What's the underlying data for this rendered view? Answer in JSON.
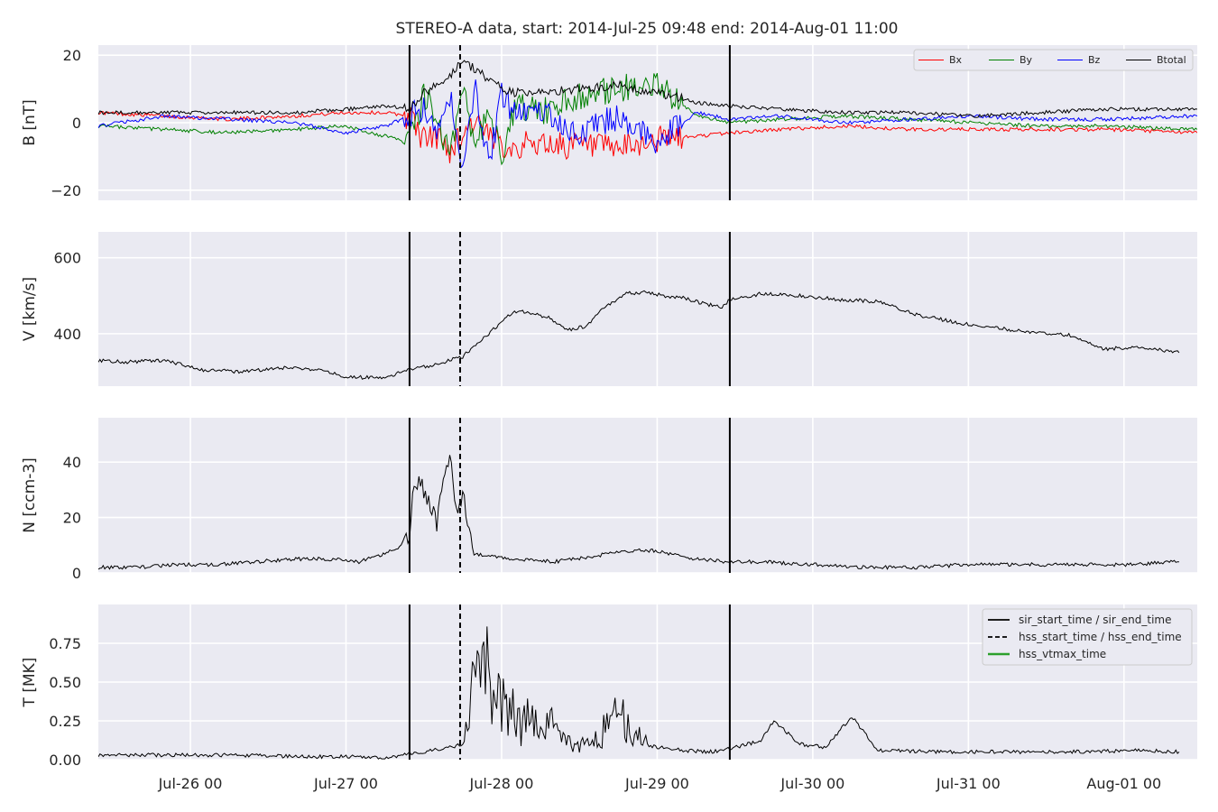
{
  "figure": {
    "title": "STEREO-A data, start: 2014-Jul-25 09:48  end: 2014-Aug-01 11:00"
  },
  "time_axis": {
    "start_hours": 9.8,
    "end_hours": 179.3,
    "tick_labels": [
      "Jul-26 00",
      "Jul-27 00",
      "Jul-28 00",
      "Jul-29 00",
      "Jul-30 00",
      "Jul-31 00",
      "Aug-01 00"
    ],
    "tick_hours": [
      24,
      48,
      72,
      96,
      120,
      144,
      168
    ]
  },
  "event_lines": {
    "sir_start_time_hours": 57.8,
    "hss_start_time_hours": 65.6,
    "sir_end_time_hours": 107.2
  },
  "colors": {
    "background": "#eaeaf2",
    "grid": "#ffffff",
    "bx": "#ff0000",
    "by": "#008000",
    "bz": "#0000ff",
    "btotal": "#000000",
    "hss_vtmax": "#2ca02c"
  },
  "chart_data": [
    {
      "type": "line",
      "ylabel": "B [nT]",
      "ylim": [
        -23,
        23
      ],
      "yticks": [
        -20,
        0,
        20
      ],
      "ytick_labels": [
        "−20",
        "0",
        "20"
      ],
      "legend_position": "top-right",
      "series": [
        {
          "name": "Bx",
          "color": "#ff0000",
          "x": [
            9.8,
            20,
            30,
            40,
            48,
            54,
            57.8,
            60,
            62,
            64,
            66,
            68,
            70,
            72,
            74,
            78,
            84,
            90,
            96,
            102,
            107.2,
            115,
            125,
            135,
            145,
            155,
            165,
            179.3
          ],
          "y": [
            3,
            2,
            1,
            2,
            3,
            3,
            2,
            -5,
            -4,
            -8,
            -3,
            1,
            -5,
            -6,
            -7,
            -6,
            -7,
            -8,
            -5,
            -4,
            -3,
            -2,
            -1,
            -2,
            -2,
            -2,
            -2,
            -3
          ]
        },
        {
          "name": "By",
          "color": "#008000",
          "x": [
            9.8,
            20,
            30,
            40,
            48,
            54,
            57.8,
            60,
            62,
            64,
            66,
            68,
            70,
            72,
            74,
            78,
            84,
            90,
            96,
            102,
            107.2,
            115,
            125,
            135,
            145,
            155,
            165,
            179.3
          ],
          "y": [
            -1,
            -2,
            -3,
            -2,
            -1,
            -4,
            -6,
            8,
            2,
            -10,
            10,
            -8,
            6,
            -10,
            5,
            3,
            8,
            10,
            12,
            2,
            0,
            1,
            2,
            1,
            0,
            -1,
            -1,
            -2
          ]
        },
        {
          "name": "Bz",
          "color": "#0000ff",
          "x": [
            9.8,
            20,
            30,
            40,
            48,
            54,
            57.8,
            60,
            62,
            64,
            66,
            68,
            70,
            72,
            74,
            78,
            84,
            90,
            96,
            102,
            107.2,
            115,
            125,
            135,
            145,
            155,
            165,
            179.3
          ],
          "y": [
            -1,
            2,
            1,
            0,
            -3,
            -1,
            2,
            4,
            -5,
            8,
            -12,
            10,
            -12,
            8,
            3,
            4,
            -3,
            2,
            -6,
            3,
            1,
            2,
            0,
            1,
            2,
            1,
            1,
            2
          ]
        },
        {
          "name": "Btotal",
          "color": "#000000",
          "x": [
            9.8,
            20,
            30,
            40,
            48,
            54,
            57.8,
            60,
            62,
            64,
            66,
            68,
            70,
            72,
            74,
            78,
            84,
            90,
            96,
            102,
            107.2,
            115,
            125,
            135,
            145,
            155,
            165,
            179.3
          ],
          "y": [
            3,
            3,
            3,
            3,
            4,
            5,
            4,
            9,
            11,
            14,
            18,
            16,
            13,
            10,
            9,
            9,
            10,
            11,
            9,
            6,
            5,
            4,
            3,
            3,
            2,
            3,
            4,
            4
          ]
        }
      ]
    },
    {
      "type": "line",
      "ylabel": "V [km/s]",
      "ylim": [
        262,
        668
      ],
      "yticks": [
        400,
        600
      ],
      "ytick_labels": [
        "400",
        "600"
      ],
      "series": [
        {
          "name": "V",
          "color": "#000000",
          "x": [
            9.8,
            14,
            20,
            26,
            32,
            38,
            44,
            48,
            54,
            57.8,
            61,
            64,
            66,
            68,
            70,
            72,
            74,
            76,
            79,
            82,
            85,
            88,
            91,
            94,
            97,
            100,
            103,
            106,
            107.2,
            112,
            118,
            124,
            130,
            136,
            142,
            148,
            154,
            160,
            165,
            170,
            176.5
          ],
          "y": [
            330,
            325,
            330,
            305,
            300,
            310,
            305,
            285,
            285,
            305,
            315,
            330,
            340,
            370,
            400,
            430,
            460,
            455,
            445,
            410,
            420,
            470,
            505,
            510,
            500,
            495,
            480,
            470,
            490,
            505,
            500,
            490,
            485,
            450,
            430,
            415,
            405,
            395,
            360,
            365,
            350
          ]
        }
      ]
    },
    {
      "type": "line",
      "ylabel": "N [ccm-3]",
      "ylim": [
        0,
        56
      ],
      "yticks": [
        0,
        20,
        40
      ],
      "ytick_labels": [
        "0",
        "20",
        "40"
      ],
      "series": [
        {
          "name": "N",
          "color": "#000000",
          "x": [
            9.8,
            16,
            22,
            28,
            34,
            40,
            46,
            50,
            54,
            56,
            57.8,
            58.5,
            60,
            62,
            63,
            64,
            65,
            66,
            67,
            68,
            70,
            74,
            80,
            86,
            92,
            96,
            102,
            107.2,
            112,
            120,
            128,
            136,
            144,
            152,
            160,
            168,
            176.5
          ],
          "y": [
            2,
            2,
            3,
            3,
            4,
            5,
            5,
            4,
            7,
            9,
            13,
            34,
            30,
            18,
            35,
            42,
            22,
            28,
            15,
            7,
            6,
            5,
            4,
            6,
            8,
            8,
            5,
            4,
            4,
            3,
            2,
            2,
            3,
            3,
            3,
            3,
            4
          ]
        }
      ]
    },
    {
      "type": "line",
      "ylabel": "T [MK]",
      "ylim": [
        0,
        1.0
      ],
      "yticks": [
        0.0,
        0.25,
        0.5,
        0.75
      ],
      "ytick_labels": [
        "0.00",
        "0.25",
        "0.50",
        "0.75"
      ],
      "legend_position": "top-right",
      "legend_entries": [
        {
          "label": "sir_start_time / sir_end_time",
          "color": "#000000",
          "style": "solid"
        },
        {
          "label": "hss_start_time / hss_end_time",
          "color": "#000000",
          "style": "dashed"
        },
        {
          "label": "hss_vtmax_time",
          "color": "#2ca02c",
          "style": "solid"
        }
      ],
      "series": [
        {
          "name": "T",
          "color": "#000000",
          "x": [
            9.8,
            20,
            30,
            40,
            50,
            54,
            57.8,
            60,
            64,
            66,
            67,
            68,
            69,
            70,
            71,
            72,
            73,
            74,
            75,
            76,
            78,
            80,
            82,
            84,
            86,
            88,
            90,
            92,
            94,
            96,
            100,
            104,
            107.2,
            110,
            112,
            114,
            118,
            122,
            126,
            130,
            140,
            150,
            160,
            170,
            176.5
          ],
          "y": [
            0.03,
            0.03,
            0.03,
            0.02,
            0.02,
            0.01,
            0.04,
            0.05,
            0.08,
            0.1,
            0.3,
            0.65,
            0.5,
            0.78,
            0.35,
            0.45,
            0.25,
            0.3,
            0.2,
            0.25,
            0.18,
            0.25,
            0.1,
            0.08,
            0.12,
            0.2,
            0.28,
            0.2,
            0.1,
            0.08,
            0.06,
            0.05,
            0.07,
            0.1,
            0.12,
            0.25,
            0.1,
            0.08,
            0.28,
            0.06,
            0.05,
            0.05,
            0.05,
            0.06,
            0.05
          ]
        }
      ]
    }
  ]
}
